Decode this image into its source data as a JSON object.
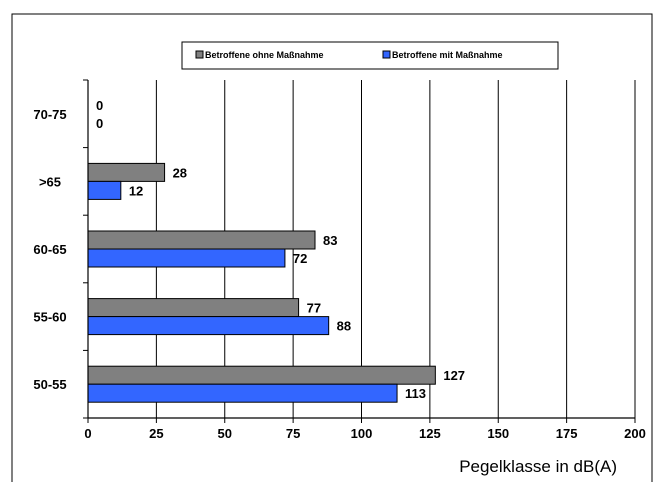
{
  "chart_data": {
    "type": "bar",
    "orientation": "horizontal",
    "categories": [
      "70-75",
      ">65",
      "60-65",
      "55-60",
      "50-55"
    ],
    "series": [
      {
        "name": "Betroffene ohne Maßnahme",
        "color": "#808080",
        "values": [
          0,
          28,
          83,
          77,
          127
        ]
      },
      {
        "name": "Betroffene mit Maßnahme",
        "color": "#3366ff",
        "values": [
          0,
          12,
          72,
          88,
          113
        ]
      }
    ],
    "xticks": [
      "0",
      "25",
      "50",
      "75",
      "100",
      "125",
      "150",
      "175",
      "200"
    ],
    "xlim": [
      0,
      200
    ],
    "xlabel": "Pegelklasse in dB(A)",
    "ylabel": "",
    "title": "",
    "grid": "vertical",
    "legend_position": "top-center"
  }
}
